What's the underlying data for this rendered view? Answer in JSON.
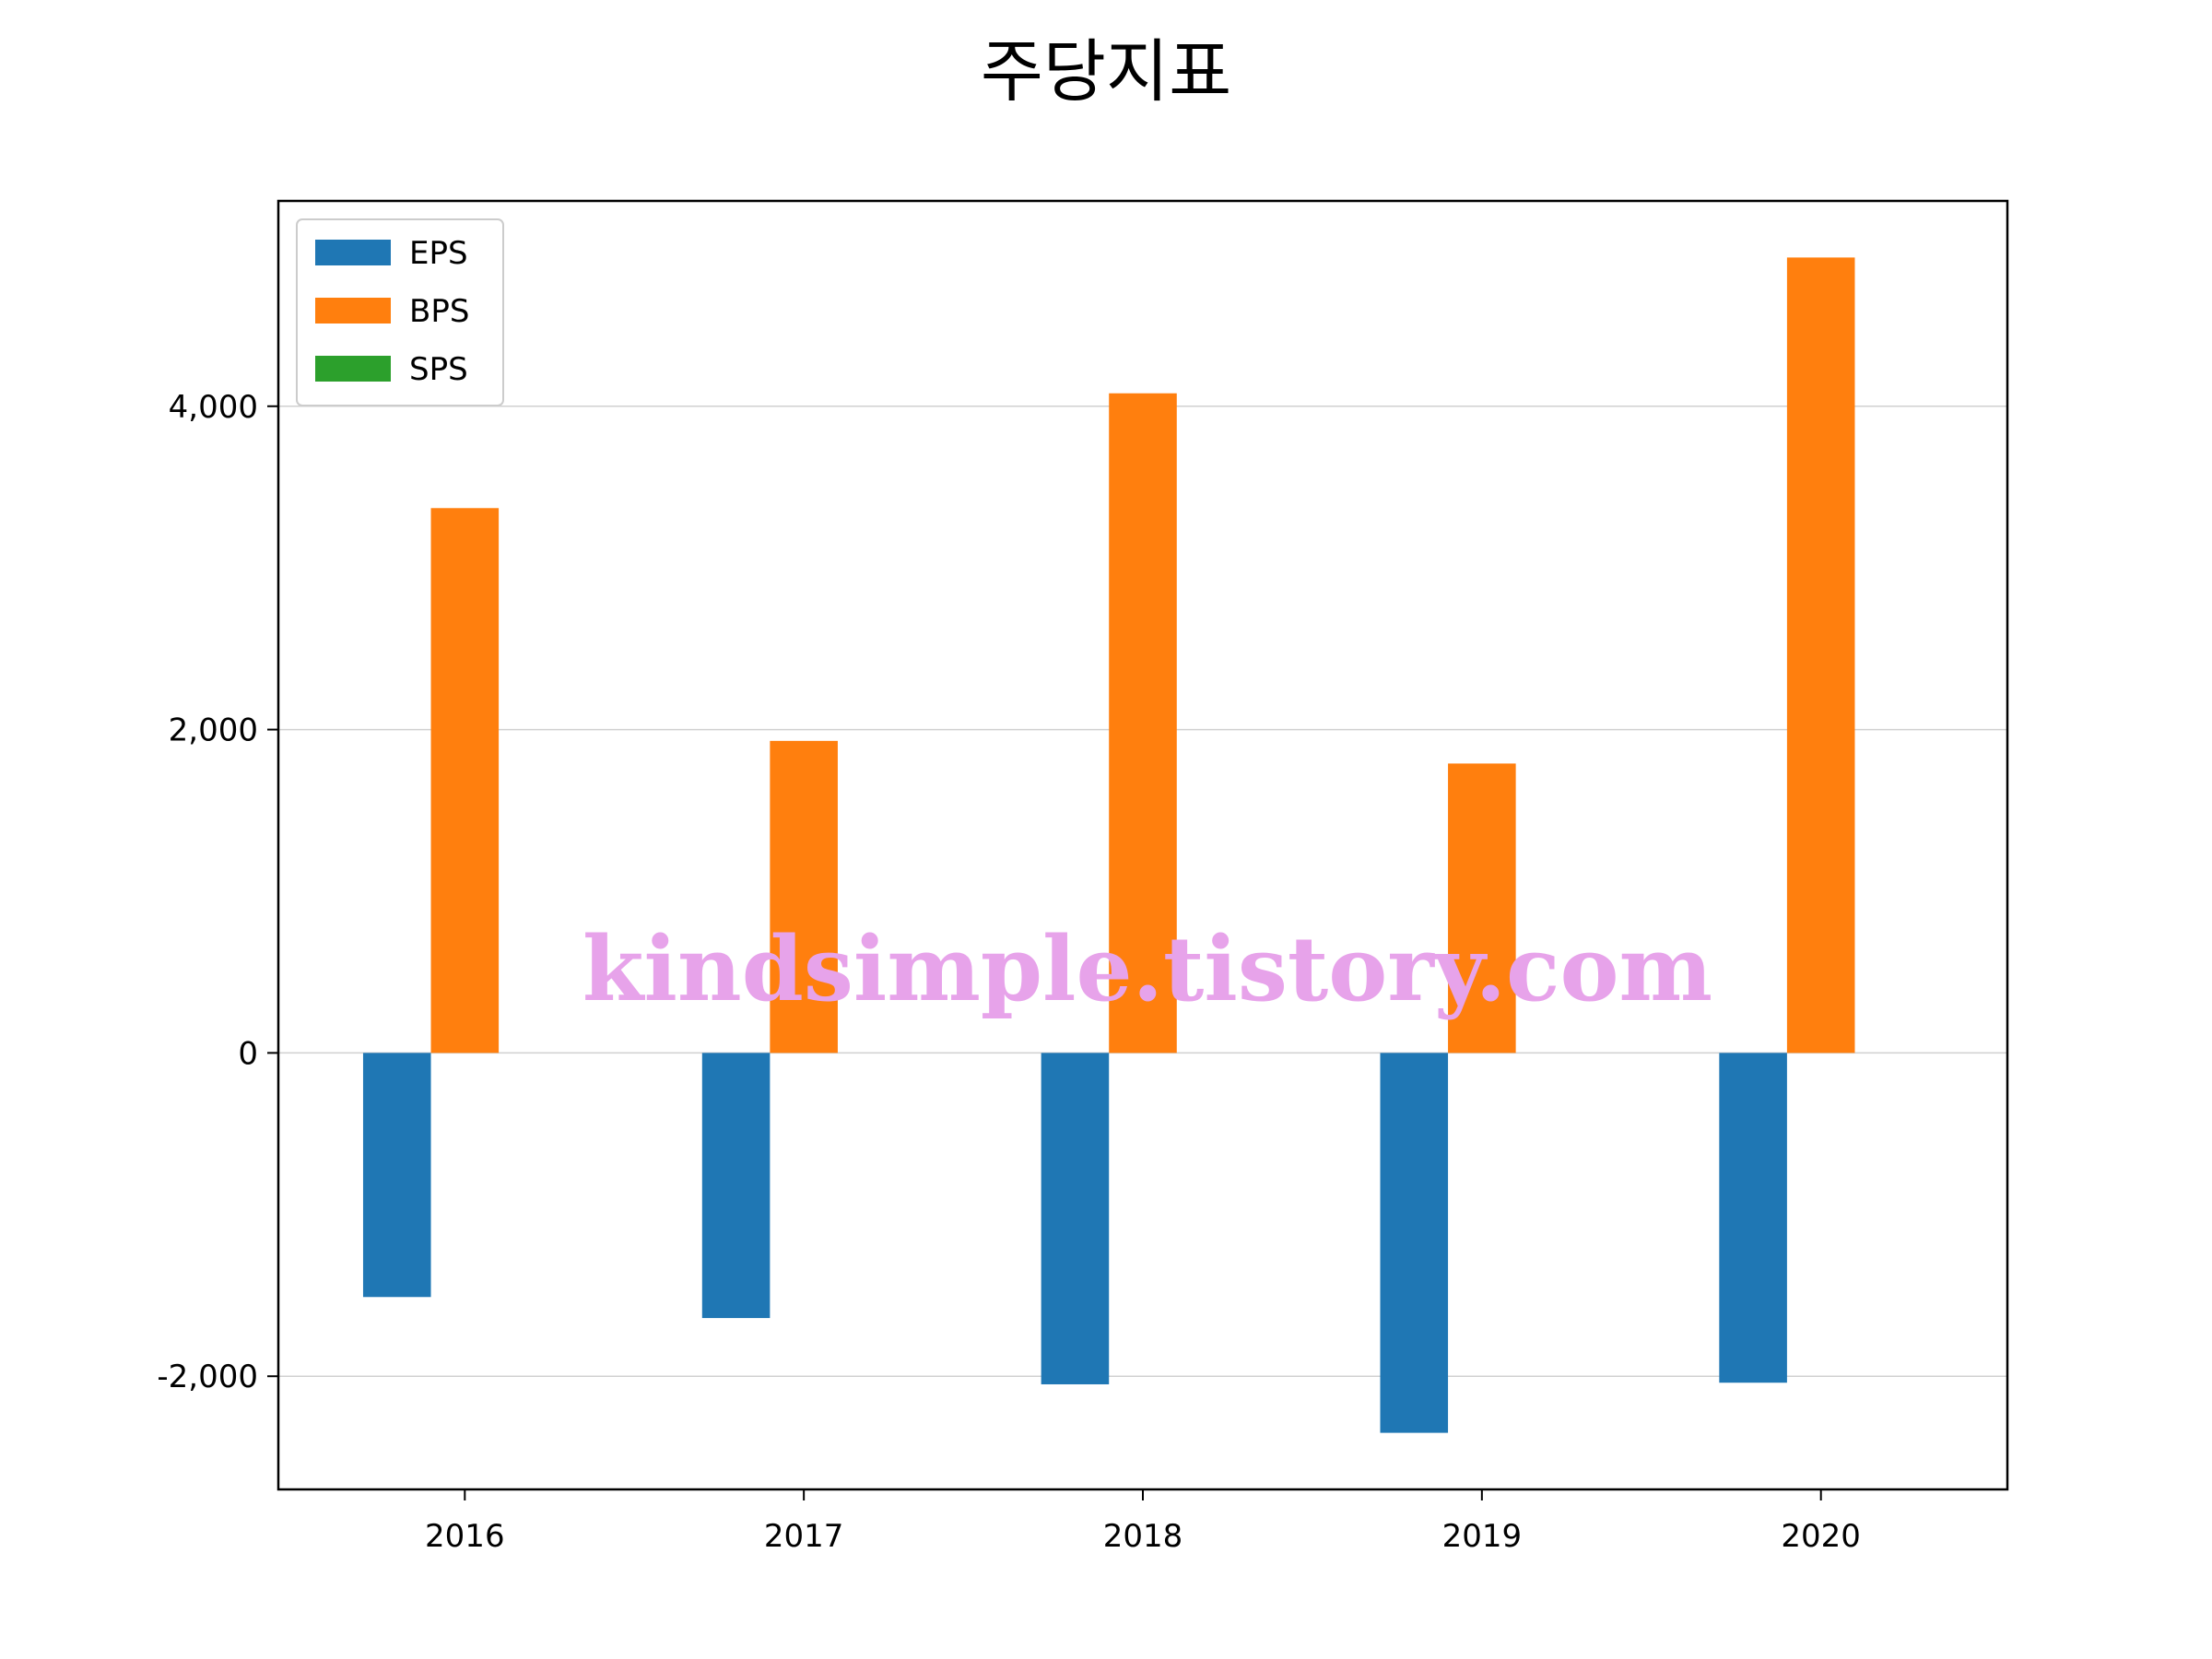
{
  "chart_data": {
    "type": "bar",
    "title": "주당지표",
    "xlabel": "",
    "ylabel": "",
    "categories": [
      "2016",
      "2017",
      "2018",
      "2019",
      "2020"
    ],
    "series": [
      {
        "name": "EPS",
        "color": "#1f77b4",
        "values": [
          -1510,
          -1640,
          -2050,
          -2350,
          -2040
        ]
      },
      {
        "name": "BPS",
        "color": "#ff7f0e",
        "values": [
          3370,
          1930,
          4080,
          1790,
          4920
        ]
      },
      {
        "name": "SPS",
        "color": "#2ca02c",
        "values": [
          0,
          0,
          0,
          0,
          0
        ]
      }
    ],
    "yticks": [
      -2000,
      0,
      2000,
      4000
    ],
    "ytick_labels": [
      "-2,000",
      "0",
      "2,000",
      "4,000"
    ],
    "ylim": [
      -2700,
      5270
    ],
    "grid": "y",
    "legend": "top-left"
  },
  "watermark": "kindsimple.tistory.com"
}
